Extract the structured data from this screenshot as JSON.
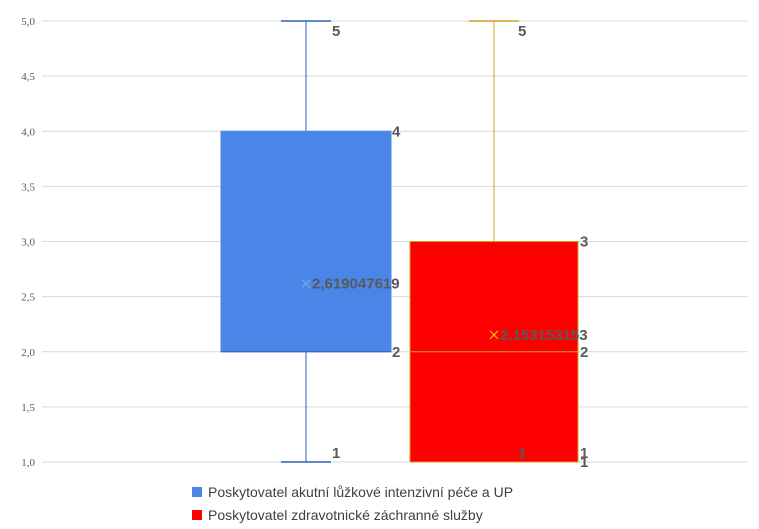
{
  "chart_data": {
    "type": "box",
    "ylim": [
      1.0,
      5.0
    ],
    "yticks": [
      "1,0",
      "1,5",
      "2,0",
      "2,5",
      "3,0",
      "3,5",
      "4,0",
      "4,5",
      "5,0"
    ],
    "ytick_values": [
      1.0,
      1.5,
      2.0,
      2.5,
      3.0,
      3.5,
      4.0,
      4.5,
      5.0
    ],
    "grid": true,
    "legend_position": "bottom",
    "series": [
      {
        "name": "Poskytovatel akutní lůžkové intenzivní péče a UP",
        "color": "#4a86e8",
        "whisker_color": "#2f5fb3",
        "min": 1,
        "q1": 2,
        "median": 2,
        "q3": 4,
        "max": 5,
        "mean": 2.619047619,
        "labels": {
          "min": "1",
          "q1": "2",
          "q3": "4",
          "max": "5",
          "mean": "2,619047619"
        }
      },
      {
        "name": "Poskytovatel zdravotnické záchranné služby",
        "color": "#ff0000",
        "whisker_color": "#c9a227",
        "min": 1,
        "q1": 1,
        "median": 2,
        "q3": 3,
        "max": 5,
        "mean": 2.153153153,
        "labels": {
          "min": "1",
          "q1": "1",
          "median": "2",
          "q3": "3",
          "max": "5",
          "mean": "2,153153153"
        }
      }
    ]
  }
}
